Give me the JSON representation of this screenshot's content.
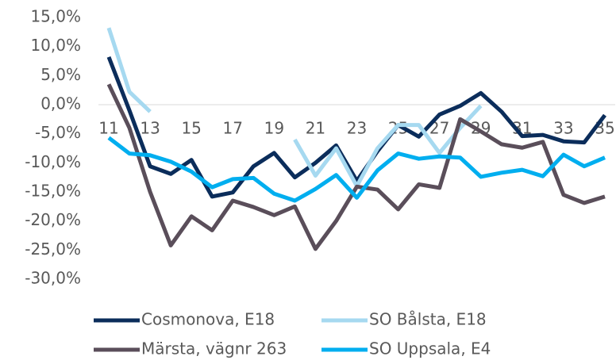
{
  "chart_data": {
    "type": "line",
    "x": [
      11,
      12,
      13,
      14,
      15,
      16,
      17,
      18,
      19,
      20,
      21,
      22,
      23,
      24,
      25,
      26,
      27,
      28,
      29,
      30,
      31,
      32,
      33,
      34,
      35
    ],
    "xlim": [
      10.5,
      35.5
    ],
    "xticks": [
      11,
      13,
      15,
      17,
      19,
      21,
      23,
      25,
      27,
      29,
      31,
      33,
      35
    ],
    "ylim": [
      -30,
      15
    ],
    "yticks": [
      {
        "value": -30,
        "label": "-30,0%"
      },
      {
        "value": -25,
        "label": "-25,0%"
      },
      {
        "value": -20,
        "label": "-20,0%"
      },
      {
        "value": -15,
        "label": "-15,0%"
      },
      {
        "value": -10,
        "label": "-10,0%"
      },
      {
        "value": -5,
        "label": "-5,0%"
      },
      {
        "value": 0,
        "label": "0,0%"
      },
      {
        "value": 5,
        "label": "5,0%"
      },
      {
        "value": 10,
        "label": "10,0%"
      },
      {
        "value": 15,
        "label": "15,0%"
      }
    ],
    "legend": "bottom",
    "series": [
      {
        "name": "Cosmonova, E18",
        "color": "#0b2d5b",
        "values": [
          8.2,
          -1,
          -10.6,
          -11.9,
          -9.5,
          -15.8,
          -15.1,
          -10.6,
          -8.3,
          -12.5,
          -10,
          -7,
          -13.1,
          -8,
          -3.5,
          -5.5,
          -1.7,
          -0.2,
          2,
          -1.2,
          -5.4,
          -5.2,
          -6.3,
          -6.5,
          -1.8
        ]
      },
      {
        "name": "SO Bålsta, E18",
        "color": "#a6d9f0",
        "values": [
          13.2,
          2.2,
          -1.2,
          null,
          null,
          null,
          null,
          null,
          null,
          -6,
          -12.2,
          -7.5,
          -14,
          -7.5,
          -3.5,
          -3.5,
          -8.3,
          -4,
          -0.2,
          null,
          null,
          null,
          null,
          null,
          null
        ]
      },
      {
        "name": "Märsta, vägnr 263",
        "color": "#5a4e5a",
        "values": [
          3.5,
          -4,
          -15,
          -24.2,
          -19.2,
          -21.6,
          -16.5,
          -17.6,
          -19,
          -17.5,
          -24.8,
          -20,
          -14.1,
          -14.6,
          -18,
          -13.7,
          -14.3,
          -2.5,
          -4.6,
          -6.8,
          -7.4,
          -6.4,
          -15.5,
          -16.9,
          -15.8
        ]
      },
      {
        "name": "SO Uppsala, E4",
        "color": "#00aeef",
        "values": [
          -5.7,
          -8.4,
          -8.7,
          -9.8,
          -11.5,
          -14.2,
          -12.8,
          -12.6,
          -15.3,
          -16.5,
          -14.5,
          -12.1,
          -16,
          -11.3,
          -8.4,
          -9.3,
          -8.9,
          -9.1,
          -12.4,
          -11.7,
          -11.2,
          -12.3,
          -8.6,
          -10.6,
          -9.1
        ]
      }
    ]
  }
}
